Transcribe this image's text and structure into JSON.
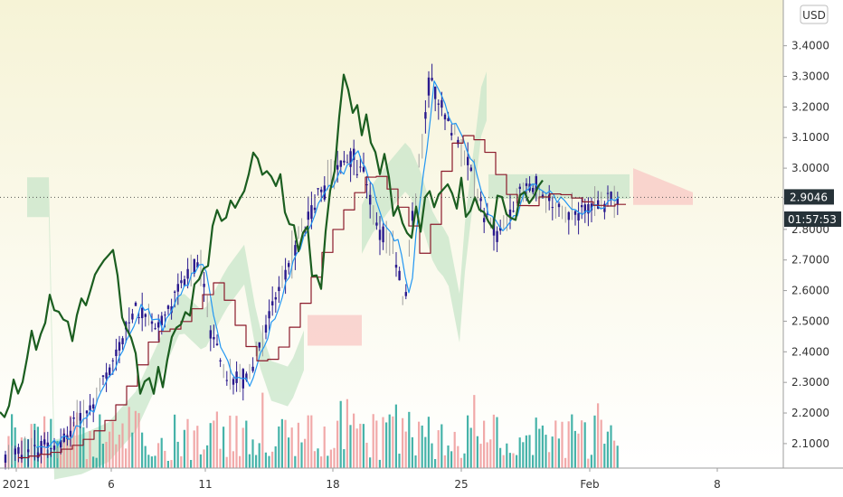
{
  "chart_data": {
    "type": "candlestick",
    "currency": "USD",
    "ylim": [
      2.02,
      3.52
    ],
    "y_ticks": [
      "2.1000",
      "2.2000",
      "2.3000",
      "2.4000",
      "2.5000",
      "2.6000",
      "2.7000",
      "2.8000",
      "2.9000",
      "3.0000",
      "3.1000",
      "3.2000",
      "3.3000",
      "3.4000"
    ],
    "x_ticks": [
      "2021",
      "6",
      "11",
      "18",
      "25",
      "Feb",
      "8"
    ],
    "last_price_label": "2.9046",
    "last_price": 2.9046,
    "countdown": "01:57:53",
    "colors": {
      "background_top": "#f6f3d6",
      "background_bottom": "#ffffff",
      "candle_body": "#2a1a8e",
      "candle_wick": "#2a1a8e",
      "doji_wick": "#9e9e9e",
      "lagging_span": "#1b5e20",
      "kijun": "#8b1a2b",
      "tenkan": "#2196f3",
      "cloud_bull": "#c8e6c9",
      "cloud_bear": "#f8c8c4",
      "volume_up": "#26a69a",
      "volume_down": "#ef9a9a",
      "price_badge": "#263238",
      "countdown_badge": "#263238"
    }
  }
}
